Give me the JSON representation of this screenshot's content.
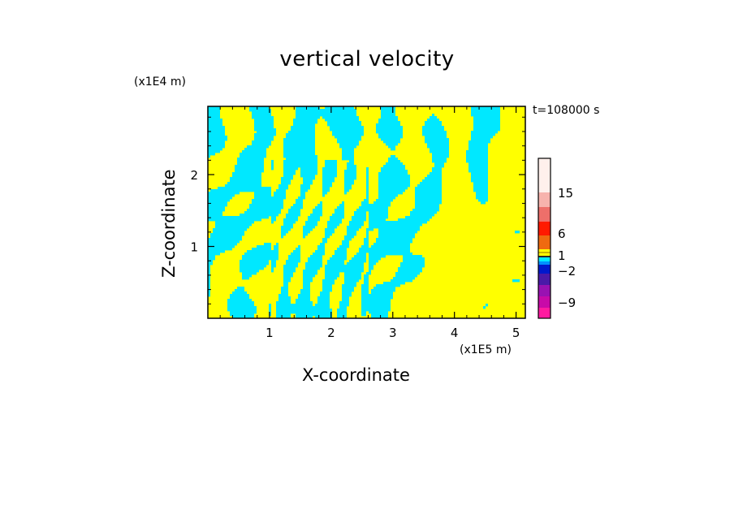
{
  "chart_data": {
    "type": "heatmap",
    "title": "vertical velocity",
    "xlabel": "X-coordinate",
    "ylabel": "Z-coordinate",
    "x_unit": "(x1E5 m)",
    "y_unit": "(x1E4 m)",
    "time_label": "t=108000 s",
    "xlim": [
      0,
      5.15
    ],
    "ylim": [
      0,
      2.95
    ],
    "x_ticks": [
      "1",
      "2",
      "3",
      "4",
      "5"
    ],
    "y_ticks": [
      "1",
      "2"
    ],
    "colorbar_labels": [
      "15",
      "6",
      "1",
      "−2",
      "−9"
    ],
    "colorbar_colors": [
      "#fff0ec",
      "#f7b3ad",
      "#ee6f6a",
      "#ff1a00",
      "#ef6a10",
      "#ffff00",
      "#00e8ff",
      "#0018cc",
      "#4a1aa8",
      "#9912b2",
      "#c80aa8",
      "#ff1aa0"
    ],
    "field_colors": {
      "positive": "#ffff00",
      "negative": "#00e8ff"
    }
  }
}
